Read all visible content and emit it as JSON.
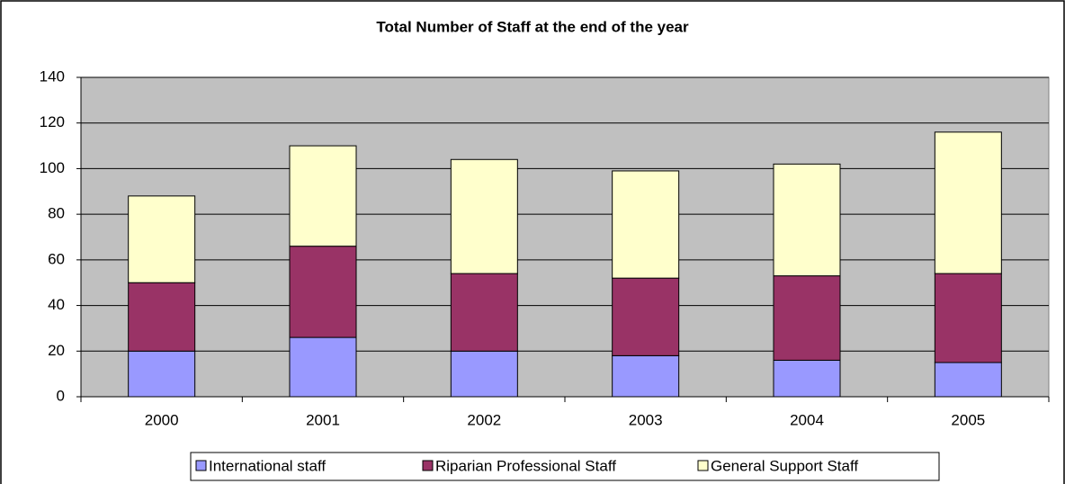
{
  "chart_data": {
    "type": "stacked_bar",
    "title": "Total Number of Staff at the end of the year",
    "categories": [
      "2000",
      "2001",
      "2002",
      "2003",
      "2004",
      "2005"
    ],
    "series": [
      {
        "name": "International staff",
        "color": "#9999ff",
        "values": [
          20,
          26,
          20,
          18,
          16,
          15
        ]
      },
      {
        "name": "Riparian Professional Staff",
        "color": "#993366",
        "values": [
          30,
          40,
          34,
          34,
          37,
          39
        ]
      },
      {
        "name": "General Support Staff",
        "color": "#ffffcc",
        "values": [
          38,
          44,
          50,
          47,
          49,
          62
        ]
      }
    ],
    "ylim": [
      0,
      140
    ],
    "yticks": [
      0,
      20,
      40,
      60,
      80,
      100,
      120,
      140
    ],
    "grid": true,
    "legend": "bottom"
  }
}
